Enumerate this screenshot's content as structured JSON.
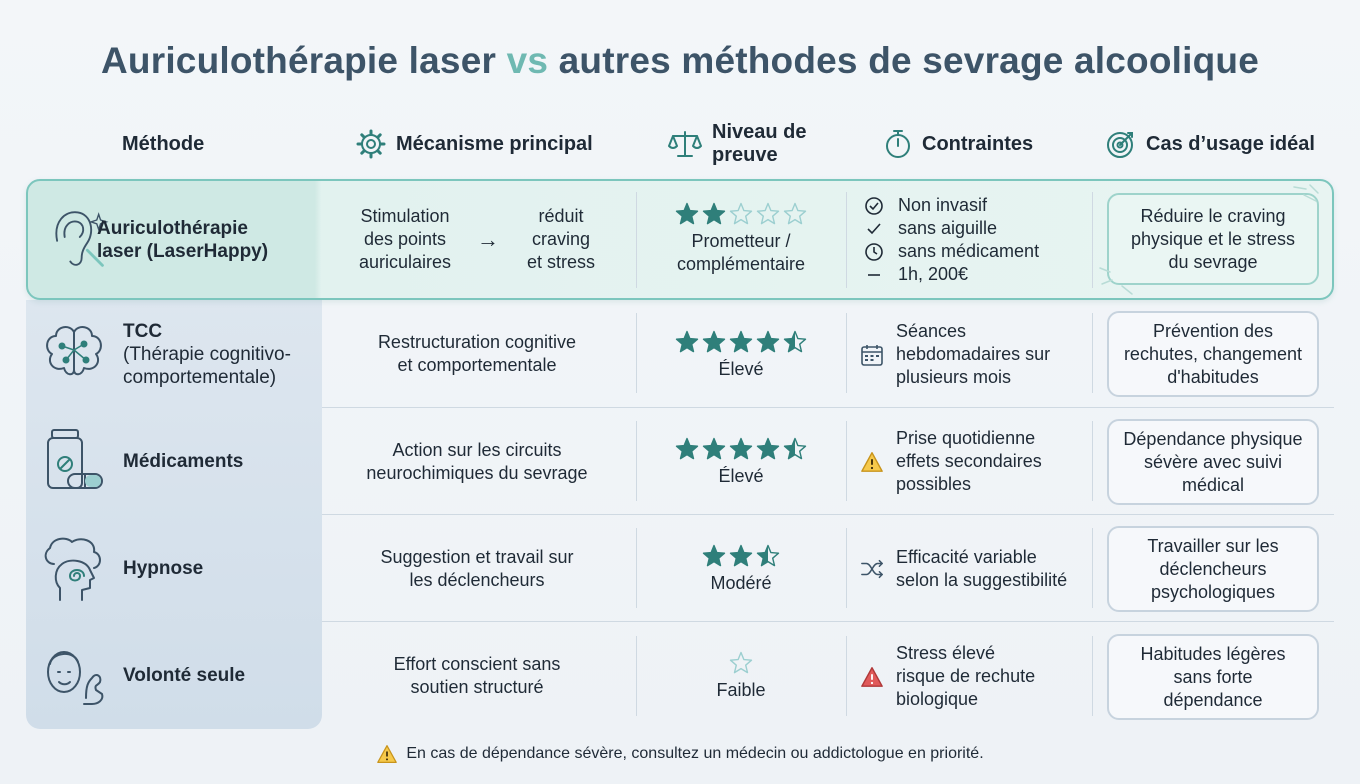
{
  "title": {
    "part1": "Auriculothérapie laser ",
    "vs": "vs",
    "part2": " autres méthodes de sevrage alcoolique"
  },
  "headers": {
    "method": "Méthode",
    "mechanism": "Mécanisme principal",
    "proof_line1": "Niveau de",
    "proof_line2": "preuve",
    "constraints": "Contraintes",
    "usecase": "Cas d’usage idéal"
  },
  "colors": {
    "accent": "#2f7f7a",
    "title": "#3d5468",
    "vs": "#6fb9b2",
    "highlight_border": "#7cc6bd"
  },
  "rows": [
    {
      "name_line1": "Auriculothérapie",
      "name_line2": "laser (LaserHappy)",
      "icon": "ear-laser-icon",
      "mech_left": [
        "Stimulation",
        "des points",
        "auriculaires"
      ],
      "mech_arrow": "→",
      "mech_right": [
        "réduit",
        "craving",
        "et stress"
      ],
      "rating": 2,
      "proof_line1": "Prometteur /",
      "proof_line2": "complémentaire",
      "constraints": [
        {
          "icon": "check-circle-icon",
          "text": "Non invasif"
        },
        {
          "icon": "check-icon",
          "text": "sans aiguille"
        },
        {
          "icon": "clock-icon",
          "text": "sans médicament"
        },
        {
          "icon": "dash-icon",
          "text": "1h, 200€"
        }
      ],
      "usecase": [
        "Réduire le craving",
        "physique et le stress",
        "du sevrage"
      ]
    },
    {
      "name_bold": "TCC",
      "name_line2": "(Thérapie cognitivo-",
      "name_line3": "comportementale)",
      "icon": "brain-icon",
      "mechanism": [
        "Restructuration cognitive",
        "et comportementale"
      ],
      "rating": 4.5,
      "proof": "Élevé",
      "constraint_icon": "calendar-icon",
      "constraints": [
        "Séances",
        "hebdomadaires sur",
        "plusieurs mois"
      ],
      "usecase": [
        "Prévention des",
        "rechutes, changement",
        "d'habitudes"
      ]
    },
    {
      "name": "Médicaments",
      "icon": "pill-bottle-icon",
      "mechanism": [
        "Action sur les circuits",
        "neurochimiques du sevrage"
      ],
      "rating": 4.5,
      "proof": "Élevé",
      "constraint_icon": "warning-icon",
      "constraints": [
        "Prise quotidienne",
        "effets secondaires",
        "possibles"
      ],
      "usecase": [
        "Dépendance physique",
        "sévère avec suivi",
        "médical"
      ]
    },
    {
      "name": "Hypnose",
      "icon": "head-spiral-icon",
      "mechanism": [
        "Suggestion et travail sur",
        "les déclencheurs"
      ],
      "rating": 2.5,
      "proof": "Modéré",
      "constraint_icon": "shuffle-icon",
      "constraints": [
        "Efficacité variable",
        "selon la suggestibilité"
      ],
      "usecase": [
        "Travailler sur les",
        "déclencheurs",
        "psychologiques"
      ]
    },
    {
      "name": "Volonté seule",
      "icon": "person-muscle-icon",
      "mechanism": [
        "Effort conscient sans",
        "soutien structuré"
      ],
      "rating": 0,
      "proof": "Faible",
      "constraint_icon": "danger-icon",
      "constraints": [
        "Stress élevé",
        "risque de rechute",
        "biologique"
      ],
      "usecase": [
        "Habitudes légères",
        "sans forte",
        "dépendance"
      ]
    }
  ],
  "footer": "En cas de dépendance sévère, consultez un médecin ou addictologue en priorité."
}
